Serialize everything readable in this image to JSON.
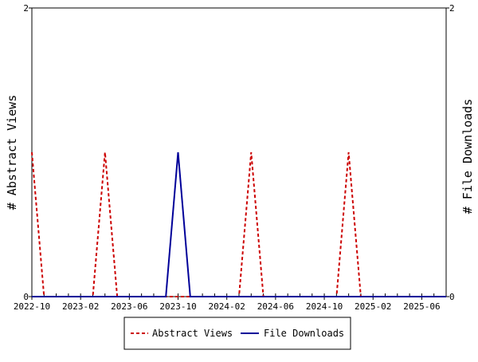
{
  "chart_data": {
    "type": "line",
    "x_tick_labels": [
      "2022-10",
      "2023-02",
      "2023-06",
      "2023-10",
      "2024-02",
      "2024-06",
      "2024-10",
      "2025-02",
      "2025-06"
    ],
    "x_range": [
      "2022-10",
      "2025-08"
    ],
    "y_left": {
      "label": "# Abstract Views",
      "range": [
        0,
        2
      ],
      "ticks": [
        "0",
        "2"
      ]
    },
    "y_right": {
      "label": "# File Downloads",
      "range": [
        0,
        2
      ],
      "ticks": [
        "0",
        "2"
      ]
    },
    "grid": false,
    "legend_position": "bottom",
    "series": [
      {
        "name": "Abstract Views",
        "axis": "left",
        "color": "#cc0000",
        "style": "dashed",
        "points": [
          [
            "2022-10",
            1
          ],
          [
            "2022-11",
            0
          ],
          [
            "2023-03",
            0
          ],
          [
            "2023-04",
            1
          ],
          [
            "2023-05",
            0
          ],
          [
            "2024-03",
            0
          ],
          [
            "2024-04",
            1
          ],
          [
            "2024-05",
            0
          ],
          [
            "2024-11",
            0
          ],
          [
            "2024-12",
            1
          ],
          [
            "2025-01",
            0
          ],
          [
            "2025-08",
            0
          ]
        ]
      },
      {
        "name": "File Downloads",
        "axis": "right",
        "color": "#000099",
        "style": "solid",
        "points": [
          [
            "2022-10",
            0
          ],
          [
            "2023-09",
            0
          ],
          [
            "2023-10",
            1
          ],
          [
            "2023-11",
            0
          ],
          [
            "2025-08",
            0
          ]
        ]
      }
    ]
  }
}
